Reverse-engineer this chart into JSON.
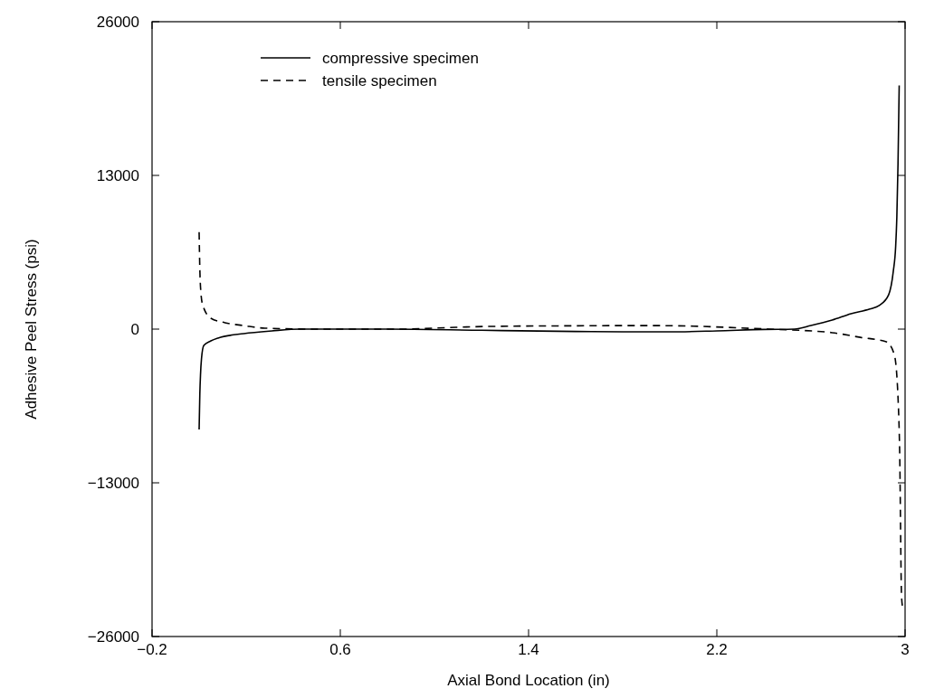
{
  "chart_data": {
    "type": "line",
    "xlabel": "Axial Bond Location (in)",
    "ylabel": "Adhesive Peel Stress (psi)",
    "xlim": [
      -0.2,
      3
    ],
    "xticks": [
      -0.2,
      0.6,
      1.4,
      2.2,
      3
    ],
    "ylim": [
      -26000,
      26000
    ],
    "yticks": [
      -26000,
      -13000,
      0,
      13000,
      26000
    ],
    "grid": false,
    "legend": "top left",
    "series": [
      {
        "name": "compressive specimen",
        "color": "#000000",
        "line_style": "solid",
        "x": [
          0,
          0.003,
          0.006,
          0.01,
          0.02,
          0.05,
          0.08,
          0.19,
          0.31,
          0.43,
          0.8,
          1.2,
          1.6,
          1.8,
          2.0,
          2.2,
          2.4,
          2.53,
          2.6,
          2.69,
          2.77,
          2.85,
          2.89,
          2.93,
          2.95,
          2.96,
          2.965,
          2.97,
          2.975
        ],
        "values": [
          -8490,
          -5500,
          -3820,
          -2520,
          -1380,
          -1000,
          -760,
          -380,
          -150,
          0,
          0,
          -100,
          -200,
          -230,
          -230,
          -150,
          -30,
          0,
          300,
          760,
          1300,
          1700,
          2000,
          2900,
          4900,
          7000,
          9500,
          14000,
          20600
        ]
      },
      {
        "name": "tensile specimen",
        "color": "#000000",
        "line_style": "dashed",
        "x": [
          0,
          0.003,
          0.008,
          0.015,
          0.05,
          0.11,
          0.19,
          0.28,
          0.5,
          0.85,
          1.09,
          1.24,
          1.6,
          1.9,
          2.1,
          2.3,
          2.42,
          2.55,
          2.69,
          2.81,
          2.92,
          2.954,
          2.97,
          2.977,
          2.985,
          2.99
        ],
        "values": [
          8200,
          5100,
          3000,
          2060,
          920,
          540,
          300,
          80,
          0,
          0,
          150,
          230,
          280,
          300,
          250,
          100,
          0,
          -100,
          -300,
          -700,
          -1070,
          -2140,
          -5800,
          -10400,
          -22600,
          -23550
        ]
      }
    ]
  }
}
